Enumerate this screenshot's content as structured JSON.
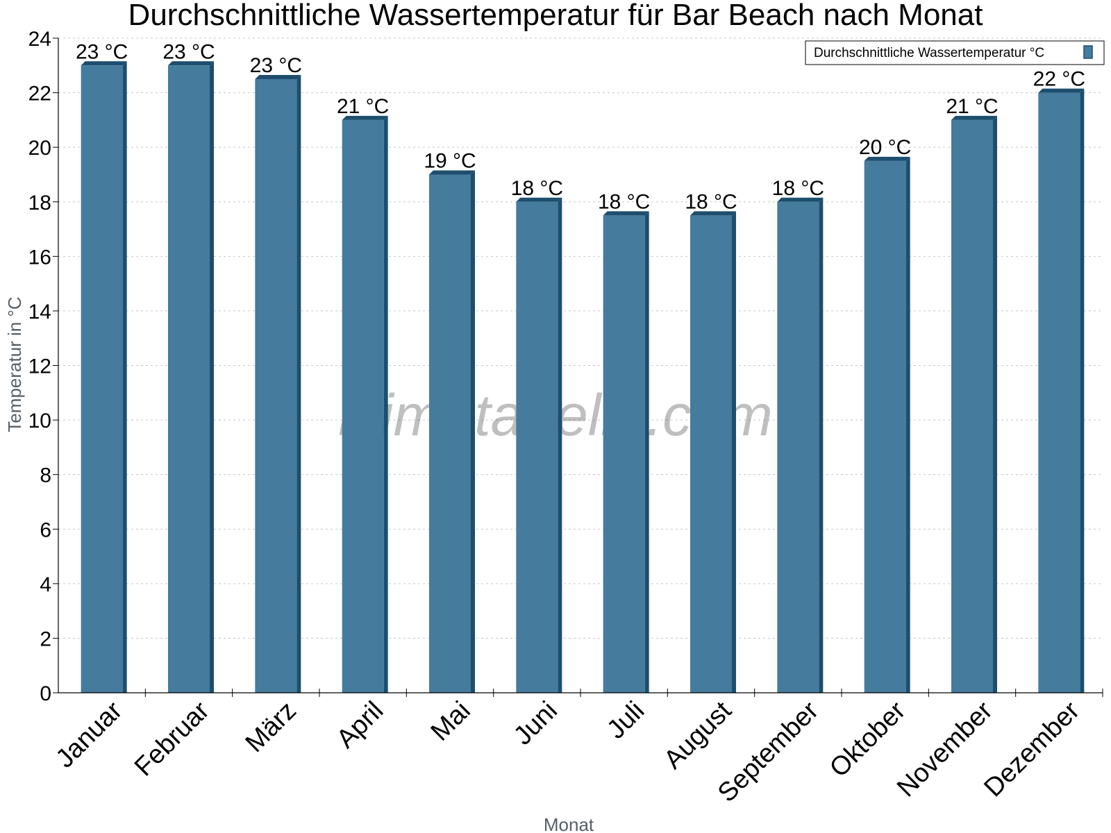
{
  "chart_data": {
    "type": "bar",
    "title": "Durchschnittliche Wassertemperatur für Bar Beach nach Monat",
    "xlabel": "Monat",
    "ylabel": "Temperatur in °C",
    "categories": [
      "Januar",
      "Februar",
      "März",
      "April",
      "Mai",
      "Juni",
      "Juli",
      "August",
      "September",
      "Oktober",
      "November",
      "Dezember"
    ],
    "series": [
      {
        "name": "Durchschnittliche Wassertemperatur °C",
        "values": [
          23,
          23,
          22.5,
          21,
          19,
          18,
          17.5,
          17.5,
          18,
          19.5,
          21,
          22
        ],
        "labels": [
          "23 °C",
          "23 °C",
          "23 °C",
          "21 °C",
          "19 °C",
          "18 °C",
          "18 °C",
          "18 °C",
          "18 °C",
          "20 °C",
          "21 °C",
          "22 °C"
        ]
      }
    ],
    "ylim": [
      0,
      24
    ],
    "yticks": [
      0,
      2,
      4,
      6,
      8,
      10,
      12,
      14,
      16,
      18,
      20,
      22,
      24
    ],
    "grid": true,
    "legend_position": "top-right",
    "colors": {
      "bar": "#457b9d",
      "bar_side": "#1d4e6e"
    }
  },
  "watermark": "klimatabelle.com"
}
